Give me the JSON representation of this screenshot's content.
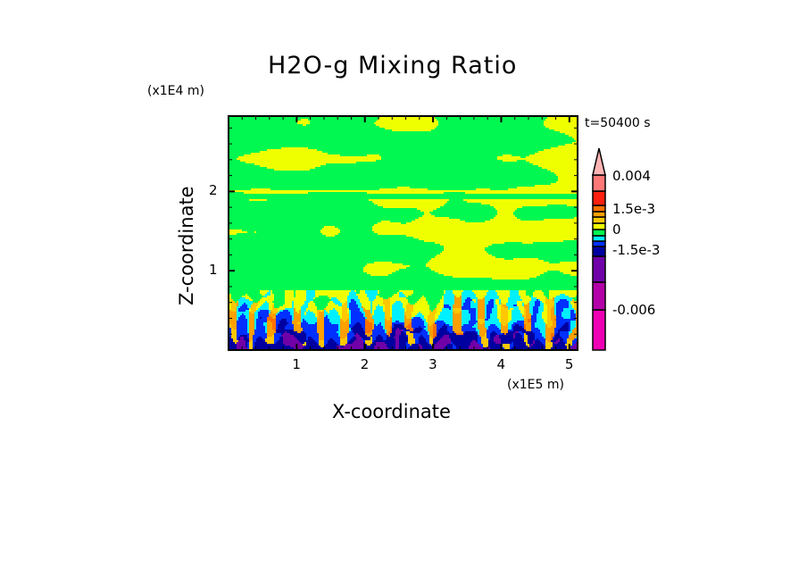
{
  "chart_data": {
    "type": "heatmap",
    "title": "H2O-g Mixing Ratio",
    "xlabel": "X-coordinate",
    "ylabel": "Z-coordinate",
    "x_unit": "(x1E5 m)",
    "y_unit": "(x1E4 m)",
    "time_label": "t=50400 s",
    "xlim": [
      0,
      5.12
    ],
    "ylim": [
      0,
      2.95
    ],
    "x_ticks": [
      "1",
      "2",
      "3",
      "4",
      "5"
    ],
    "x_tick_values": [
      1,
      2,
      3,
      4,
      5
    ],
    "y_ticks": [
      "1",
      "2"
    ],
    "y_tick_values": [
      1,
      2
    ],
    "colorbar": {
      "labels": [
        "0.004",
        "1.5e-3",
        "0",
        "-1.5e-3",
        "-0.006"
      ],
      "colors": [
        "#f000b4",
        "#b400a8",
        "#7000a8",
        "#0000a0",
        "#0030ff",
        "#00f0ff",
        "#00f850",
        "#f0ff00",
        "#ffc800",
        "#ffa000",
        "#ff7000",
        "#ff2010",
        "#ff7878"
      ],
      "extend_color": "#ffb4b4"
    }
  }
}
